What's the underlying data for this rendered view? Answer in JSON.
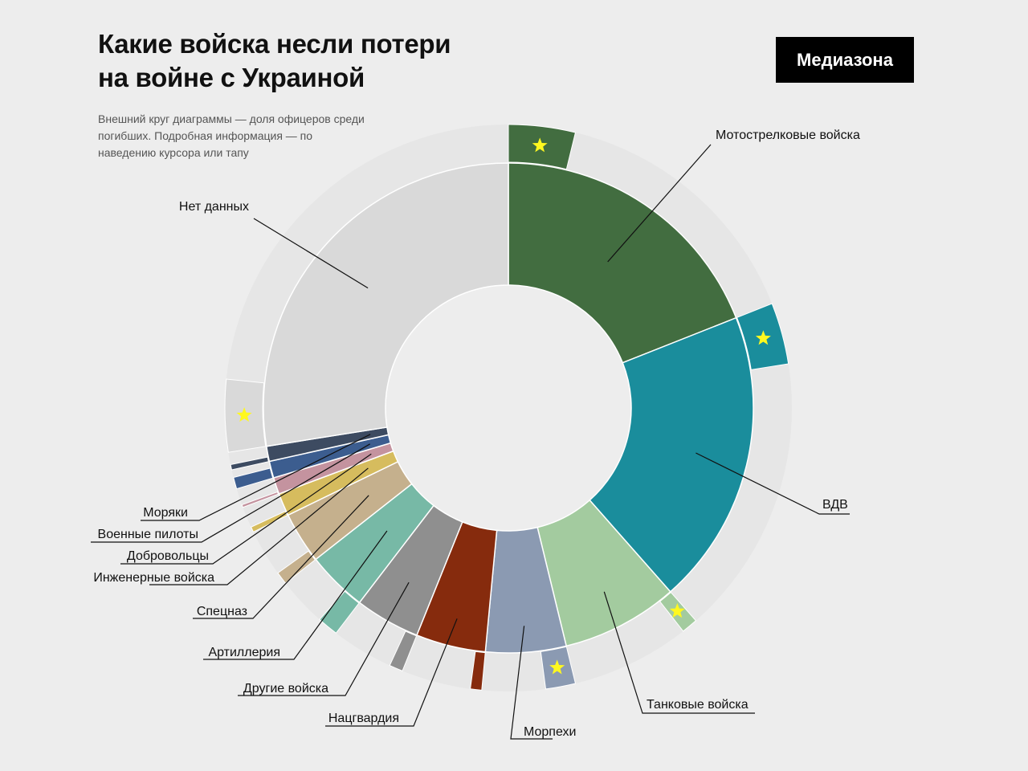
{
  "header": {
    "title": "Какие войска несли потери\nна войне с Украиной",
    "subtitle": "Внешний круг диаграммы — доля офицеров среди погибших. Подробная информация — по наведению курсора или тапу",
    "logo": "Медиазона"
  },
  "chart_data": {
    "type": "pie",
    "variant": "donut-with-outer-ring",
    "outer_ring_meaning": "доля офицеров среди погибших",
    "categories": [
      "Мотострелковые войска",
      "ВДВ",
      "Танковые войска",
      "Морпехи",
      "Нацгвардия",
      "Другие войска",
      "Артиллерия",
      "Спецназ",
      "Инженерные войска",
      "Добровольцы",
      "Военные пилоты",
      "Моряки",
      "Нет данных"
    ],
    "values": [
      19.0,
      19.5,
      7.7,
      5.3,
      4.6,
      4.3,
      4.0,
      3.4,
      1.5,
      1.1,
      1.1,
      1.0,
      27.5
    ],
    "officer_share": [
      0.2,
      0.18,
      0.12,
      0.32,
      0.14,
      0.18,
      0.3,
      0.21,
      0.2,
      0.14,
      0.6,
      0.3,
      0.15
    ],
    "colors": [
      "#426d40",
      "#1a8d9c",
      "#a3cb9f",
      "#8b9ab2",
      "#862b0d",
      "#8f8f8f",
      "#77b9a6",
      "#c5b08d",
      "#d6bc5e",
      "#c4939f",
      "#3c5d8f",
      "#3d4b61",
      "#d9d9d9"
    ],
    "star_marked": [
      "Мотострелковые войска",
      "ВДВ",
      "Танковые войска",
      "Морпехи",
      "Нет данных"
    ],
    "legend": "labels with leader lines"
  }
}
